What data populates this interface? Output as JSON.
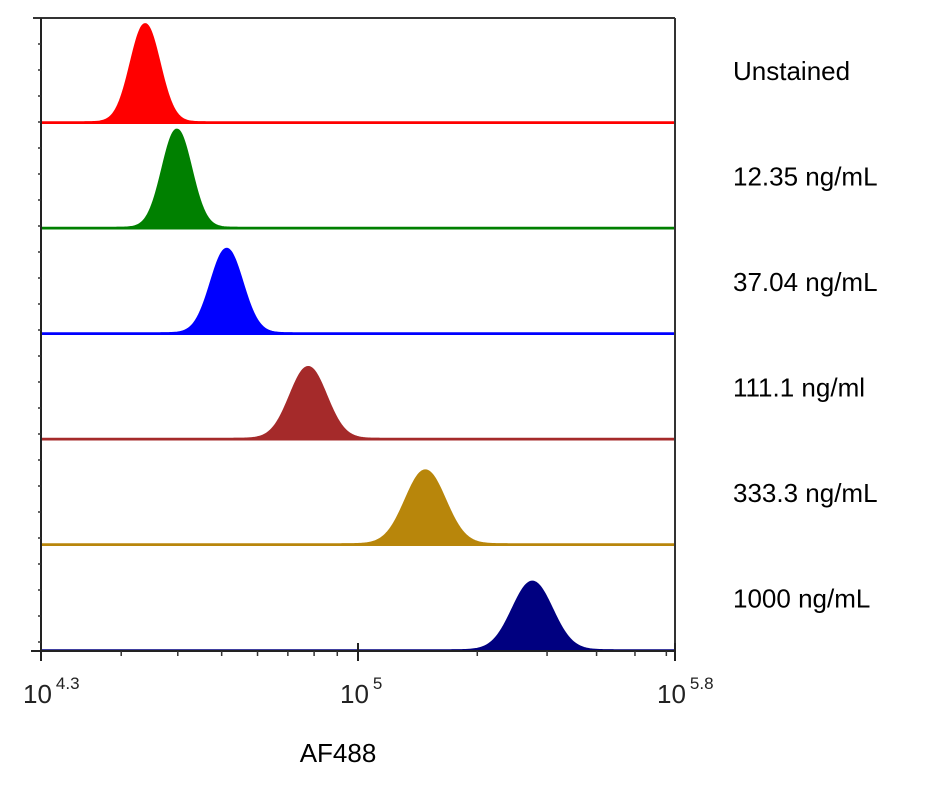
{
  "chart_data": {
    "type": "area",
    "title": "",
    "xlabel": "AF488",
    "ylabel": "",
    "x_scale": "log10",
    "xlim_log10": [
      4.3,
      5.8
    ],
    "x_ticks": [
      {
        "base": "10",
        "exp": "4.3",
        "log10": 4.3
      },
      {
        "base": "10",
        "exp": "5",
        "log10": 5.0
      },
      {
        "base": "10",
        "exp": "5.8",
        "log10": 5.8
      }
    ],
    "grid": false,
    "layout": "offset histograms (one lane per sample, labels at right)",
    "series": [
      {
        "name": "Unstained",
        "color": "#ff0000",
        "peak_log10": 4.53,
        "sd_log10": 0.032,
        "relative_height": 0.93
      },
      {
        "name": "12.35 ng/mL",
        "color": "#008000",
        "peak_log10": 4.6,
        "sd_log10": 0.032,
        "relative_height": 0.93
      },
      {
        "name": "37.04 ng/mL",
        "color": "#0000ff",
        "peak_log10": 4.71,
        "sd_log10": 0.035,
        "relative_height": 0.8
      },
      {
        "name": "111.1 ng/ml",
        "color": "#a52a2a",
        "peak_log10": 4.89,
        "sd_log10": 0.04,
        "relative_height": 0.68
      },
      {
        "name": "333.3 ng/mL",
        "color": "#b8860b",
        "peak_log10": 5.17,
        "sd_log10": 0.05,
        "relative_height": 0.7
      },
      {
        "name": "1000 ng/mL",
        "color": "#000080",
        "peak_log10": 5.44,
        "sd_log10": 0.05,
        "relative_height": 0.65
      }
    ]
  }
}
